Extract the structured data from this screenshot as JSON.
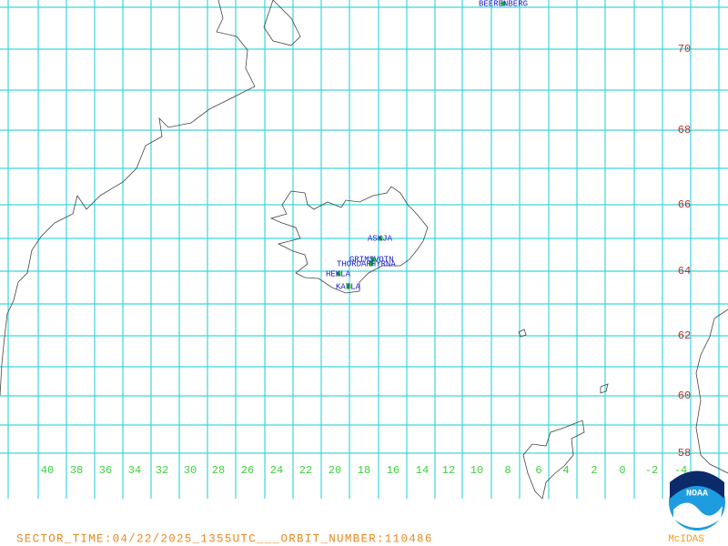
{
  "map": {
    "lat_labels": [
      "70",
      "68",
      "66",
      "64",
      "62",
      "60",
      "58"
    ],
    "lon_labels": [
      "40",
      "38",
      "36",
      "34",
      "32",
      "30",
      "28",
      "26",
      "24",
      "22",
      "20",
      "18",
      "16",
      "14",
      "12",
      "10",
      "8",
      "6",
      "4",
      "2",
      "0",
      "-2",
      "-4"
    ],
    "volcanoes": [
      "BEERENBERG",
      "ASKJA",
      "GRIMSVOTN",
      "THORDARHYRNA",
      "HEKLA",
      "KATLA"
    ],
    "footer": "SECTOR_TIME:04/22/2025_1355UTC___ORBIT_NUMBER:110486",
    "logo": {
      "name": "NOAA",
      "caption": "McIDAS"
    }
  }
}
